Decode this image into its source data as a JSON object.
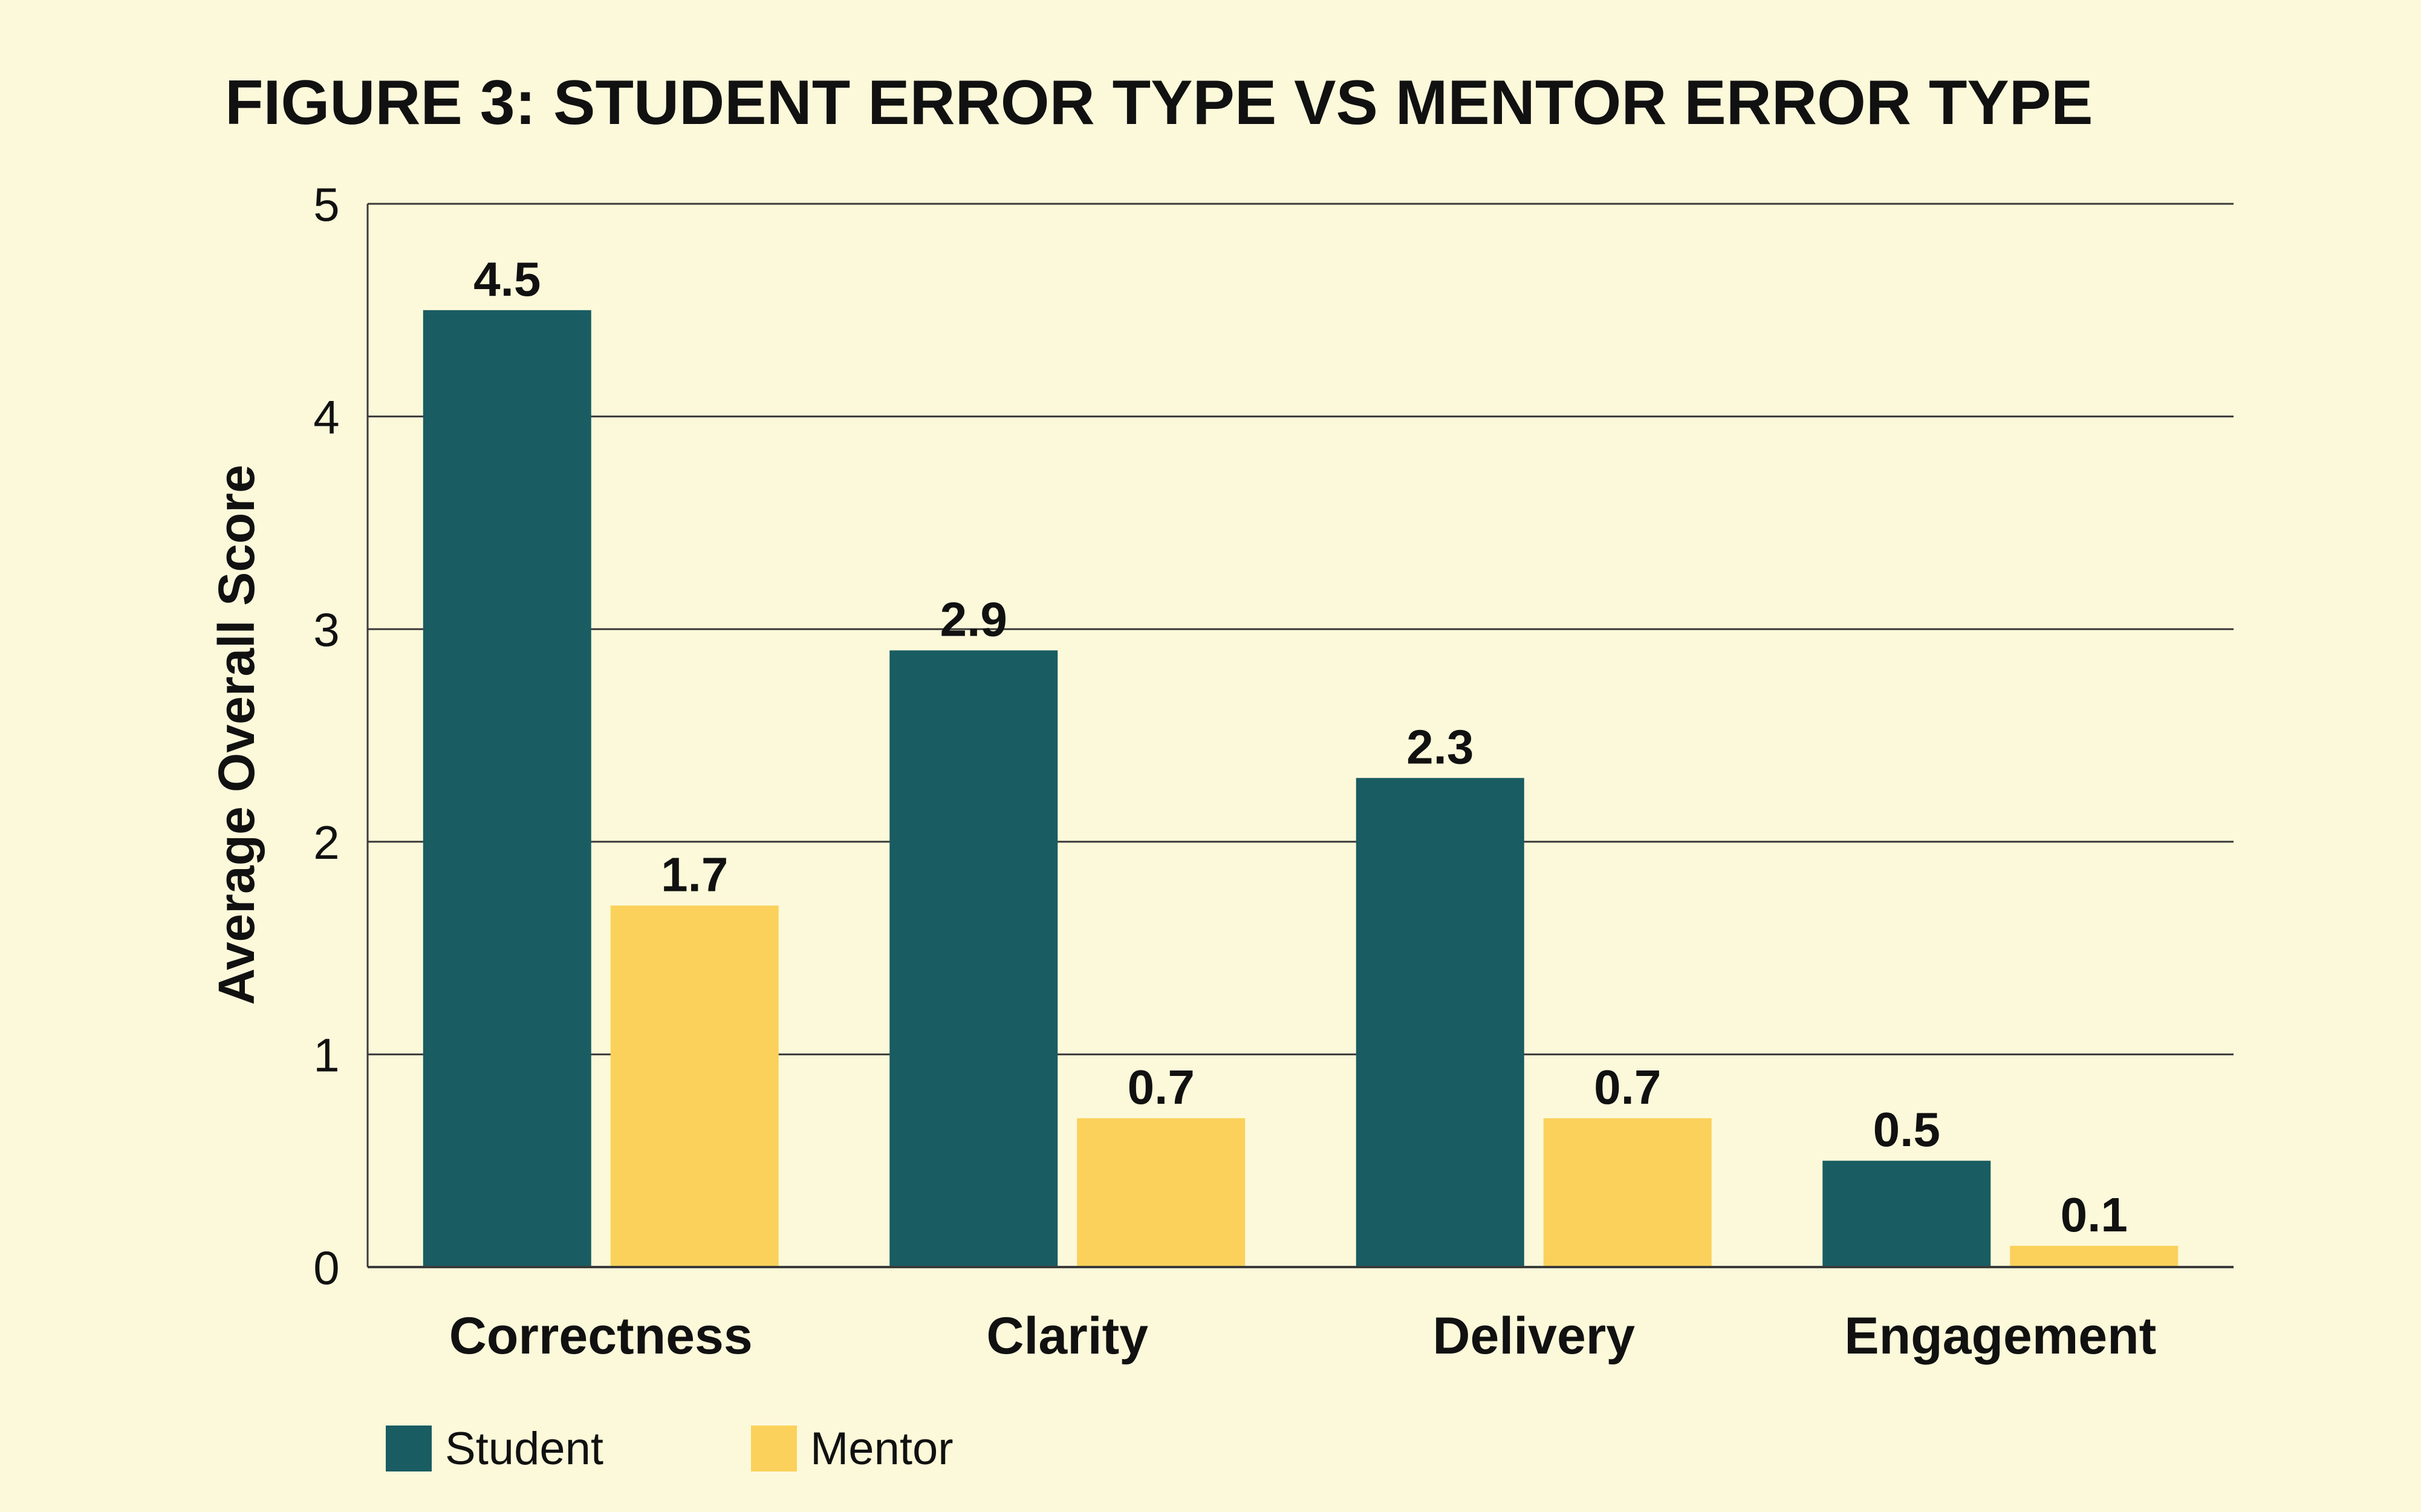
{
  "chart_data": {
    "type": "bar",
    "title": "FIGURE 3: STUDENT ERROR TYPE VS MENTOR ERROR TYPE",
    "xlabel": "",
    "ylabel": "Average Overall Score",
    "categories": [
      "Correctness",
      "Clarity",
      "Delivery",
      "Engagement"
    ],
    "series": [
      {
        "name": "Student",
        "values": [
          4.5,
          2.9,
          2.3,
          0.5
        ],
        "color": "#195c62"
      },
      {
        "name": "Mentor",
        "values": [
          1.7,
          0.7,
          0.7,
          0.1
        ],
        "color": "#fbd15c"
      }
    ],
    "ylim": [
      0,
      5
    ],
    "yticks": [
      "0",
      "1",
      "2",
      "3",
      "4",
      "5"
    ],
    "value_labels": [
      [
        "4.5",
        "2.9",
        "2.3",
        "0.5"
      ],
      [
        "1.7",
        "0.7",
        "0.7",
        "0.1"
      ]
    ],
    "grid": true,
    "legend": "bottom-left"
  }
}
